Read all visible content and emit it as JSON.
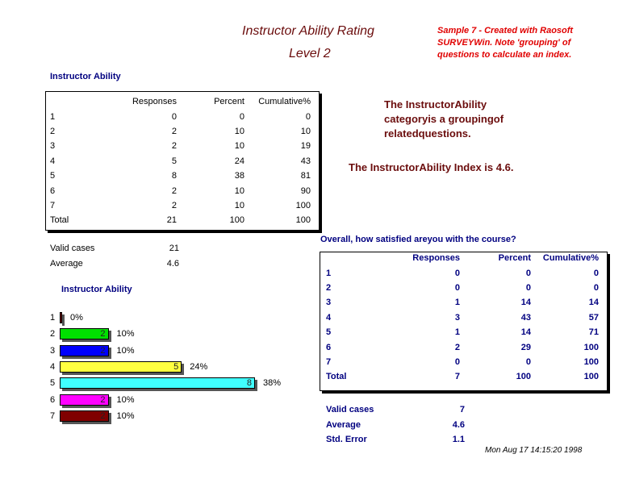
{
  "header": {
    "title": "Instructor Ability Rating",
    "subtitle": "Level 2",
    "note_lines": [
      "Sample 7 - Created with Raosoft",
      "SURVEYWin. Note 'grouping' of",
      "questions to calculate an index."
    ]
  },
  "left_table": {
    "section_title": "Instructor Ability",
    "headers": [
      "Responses",
      "Percent",
      "Cumulative%"
    ],
    "rows": [
      {
        "label": "1",
        "responses": "0",
        "percent": "0",
        "cumulative": "0"
      },
      {
        "label": "2",
        "responses": "2",
        "percent": "10",
        "cumulative": "10"
      },
      {
        "label": "3",
        "responses": "2",
        "percent": "10",
        "cumulative": "19"
      },
      {
        "label": "4",
        "responses": "5",
        "percent": "24",
        "cumulative": "43"
      },
      {
        "label": "5",
        "responses": "8",
        "percent": "38",
        "cumulative": "81"
      },
      {
        "label": "6",
        "responses": "2",
        "percent": "10",
        "cumulative": "90"
      },
      {
        "label": "7",
        "responses": "2",
        "percent": "10",
        "cumulative": "100"
      },
      {
        "label": "Total",
        "responses": "21",
        "percent": "100",
        "cumulative": "100"
      }
    ],
    "valid_cases_label": "Valid cases",
    "valid_cases": "21",
    "average_label": "Average",
    "average": "4.6"
  },
  "explanation": {
    "lines": [
      "The InstructorAbility",
      "categoryis a groupingof",
      "relatedquestions."
    ],
    "index_text": "The InstructorAbility Index is 4.6."
  },
  "chart_data": {
    "type": "bar",
    "orientation": "horizontal",
    "title": "Instructor Ability",
    "categories": [
      "1",
      "2",
      "3",
      "4",
      "5",
      "6",
      "7"
    ],
    "values": [
      0,
      2,
      2,
      5,
      8,
      2,
      2
    ],
    "percent_labels": [
      "0%",
      "10%",
      "10%",
      "24%",
      "38%",
      "10%",
      "10%"
    ],
    "colors": [
      "#800000",
      "#00e000",
      "#0000ff",
      "#ffff40",
      "#40ffff",
      "#ff00ff",
      "#800000"
    ]
  },
  "right_table": {
    "question": "Overall, how satisfied areyou with the course?",
    "headers": [
      "Responses",
      "Percent",
      "Cumulative%"
    ],
    "rows": [
      {
        "label": "1",
        "responses": "0",
        "percent": "0",
        "cumulative": "0"
      },
      {
        "label": "2",
        "responses": "0",
        "percent": "0",
        "cumulative": "0"
      },
      {
        "label": "3",
        "responses": "1",
        "percent": "14",
        "cumulative": "14"
      },
      {
        "label": "4",
        "responses": "3",
        "percent": "43",
        "cumulative": "57"
      },
      {
        "label": "5",
        "responses": "1",
        "percent": "14",
        "cumulative": "71"
      },
      {
        "label": "6",
        "responses": "2",
        "percent": "29",
        "cumulative": "100"
      },
      {
        "label": "7",
        "responses": "0",
        "percent": "0",
        "cumulative": "100"
      },
      {
        "label": "Total",
        "responses": "7",
        "percent": "100",
        "cumulative": "100"
      }
    ],
    "valid_cases_label": "Valid cases",
    "valid_cases": "7",
    "average_label": "Average",
    "average": "4.6",
    "std_error_label": "Std. Error",
    "std_error": "1.1"
  },
  "footer": {
    "timestamp": "Mon Aug 17 14:15:20 1998"
  }
}
